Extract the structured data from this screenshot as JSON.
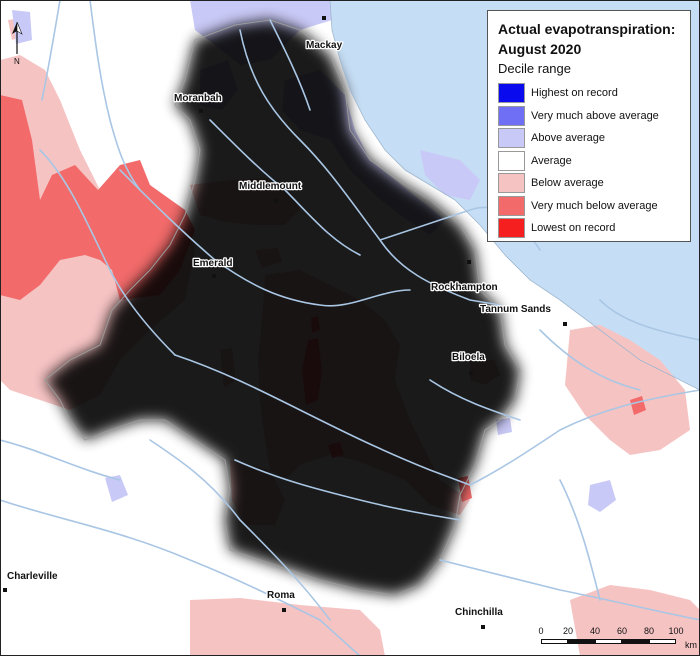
{
  "legend": {
    "title_line1": "Actual evapotranspiration:",
    "title_line2": "August 2020",
    "subtitle": "Decile range",
    "items": [
      {
        "label": "Highest on record",
        "color": "#0a0aee"
      },
      {
        "label": "Very much above average",
        "color": "#6f6ff5"
      },
      {
        "label": "Above average",
        "color": "#c9c9f7"
      },
      {
        "label": "Average",
        "color": "#ffffff"
      },
      {
        "label": "Below average",
        "color": "#f6c3c3"
      },
      {
        "label": "Very much below average",
        "color": "#f26a6a"
      },
      {
        "label": "Lowest on record",
        "color": "#f51f1f"
      }
    ]
  },
  "towns": [
    {
      "name": "Mackay"
    },
    {
      "name": "Moranbah"
    },
    {
      "name": "Middlemount"
    },
    {
      "name": "Emerald"
    },
    {
      "name": "Rockhampton"
    },
    {
      "name": "Tannum Sands"
    },
    {
      "name": "Biloela"
    },
    {
      "name": "Charleville"
    },
    {
      "name": "Roma"
    },
    {
      "name": "Chinchilla"
    }
  ],
  "scale_bar": {
    "ticks": [
      "0",
      "20",
      "40",
      "60",
      "80",
      "100"
    ],
    "unit": "km"
  },
  "north_arrow": {
    "label": "N"
  },
  "colors": {
    "ocean": "#c6def5",
    "river": "#a9c6e4",
    "background": "#ffffff",
    "basin_shadow": "#7a7a7a"
  }
}
